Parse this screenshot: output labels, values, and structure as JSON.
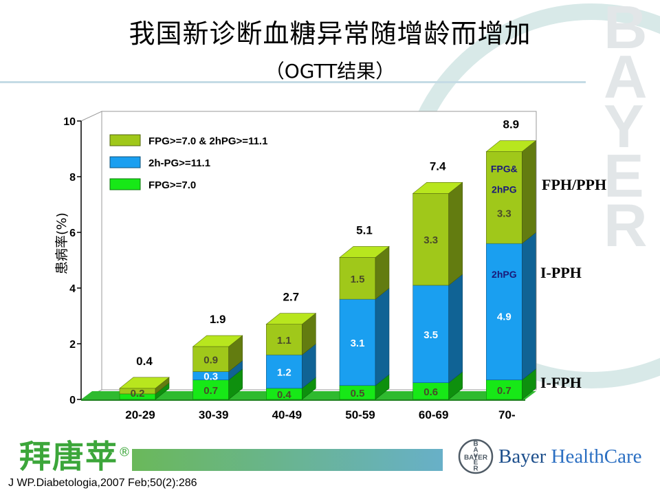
{
  "title": "我国新诊断血糖异常随增龄而增加",
  "subtitle": "（OGTT结果）",
  "watermark_text": "BAYER",
  "source": "J WP.Diabetologia,2007 Feb;50(2):286",
  "product_logo": "拜唐苹",
  "registered_mark": "®",
  "company": {
    "name": "Bayer",
    "suffix": "HealthCare",
    "seal_text": "BAYER"
  },
  "tags": {
    "fph_pph": "FPH/PPH",
    "i_pph": "I-PPH",
    "i_fph": "I-FPH"
  },
  "colors": {
    "fpg": "#17e817",
    "two_h_pg": "#1a9ff0",
    "both": "#a0c81a",
    "floor": "#2fba2f"
  },
  "chart_data": {
    "type": "bar",
    "stacked": true,
    "ylabel": "患病率(%)",
    "ylim": [
      0,
      10
    ],
    "yticks": [
      0,
      2,
      4,
      6,
      8,
      10
    ],
    "categories": [
      "20-29",
      "30-39",
      "40-49",
      "50-59",
      "60-69",
      "70-"
    ],
    "series": [
      {
        "name": "FPG>=7.0",
        "values": [
          0.2,
          0.7,
          0.4,
          0.5,
          0.6,
          0.7
        ]
      },
      {
        "name": "2h-PG>=11.1",
        "values": [
          0,
          0.3,
          1.2,
          3.1,
          3.5,
          4.9
        ]
      },
      {
        "name": "FPG>=7.0 & 2hPG>=11.1",
        "values": [
          0.2,
          0.9,
          1.1,
          1.5,
          3.3,
          3.3
        ]
      }
    ],
    "totals": [
      0.4,
      1.9,
      2.7,
      5.1,
      7.4,
      8.9
    ],
    "legend_order": [
      2,
      1,
      0
    ],
    "legend_position": "top-left",
    "segment_annotations": [
      {
        "category": "70-",
        "series": 2,
        "text": "FPG&"
      },
      {
        "category": "70-",
        "series": 2,
        "text": "2hPG"
      },
      {
        "category": "70-",
        "series": 1,
        "text": "2hPG"
      }
    ]
  }
}
